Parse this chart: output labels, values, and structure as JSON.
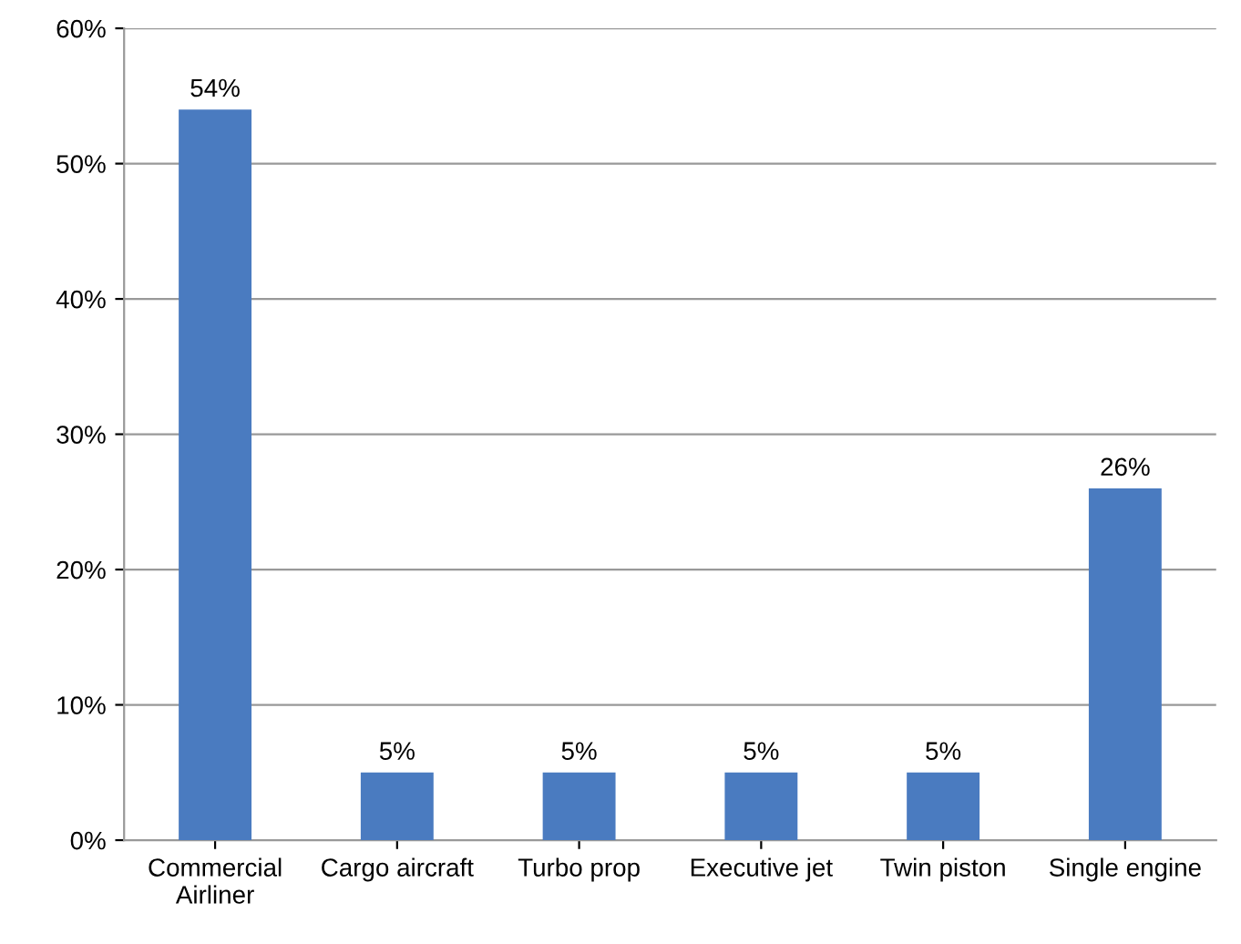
{
  "chart_data": {
    "type": "bar",
    "categories": [
      "Commercial\nAirliner",
      "Cargo aircraft",
      "Turbo prop",
      "Executive jet",
      "Twin piston",
      "Single engine"
    ],
    "values": [
      54,
      5,
      5,
      5,
      5,
      26
    ],
    "value_labels": [
      "54%",
      "5%",
      "5%",
      "5%",
      "5%",
      "26%"
    ],
    "color": "#4a7bc0",
    "ylim": [
      0,
      60
    ],
    "yticks": [
      {
        "value": 0,
        "label": "0%"
      },
      {
        "value": 10,
        "label": "10%"
      },
      {
        "value": 20,
        "label": "20%"
      },
      {
        "value": 30,
        "label": "30%"
      },
      {
        "value": 40,
        "label": "40%"
      },
      {
        "value": 50,
        "label": "50%"
      },
      {
        "value": 60,
        "label": "60%"
      }
    ],
    "grid": "y",
    "legend": false
  }
}
